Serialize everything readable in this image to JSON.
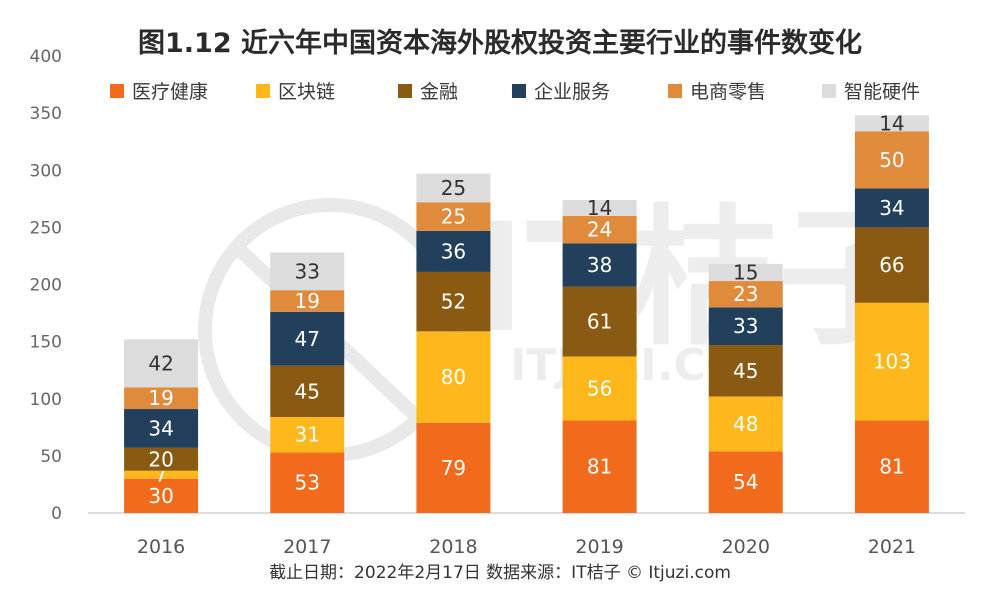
{
  "chart_data": {
    "type": "bar",
    "stacked": true,
    "title": "图1.12 近六年中国资本海外股权投资主要行业的事件数变化",
    "categories": [
      "2016",
      "2017",
      "2018",
      "2019",
      "2020",
      "2021"
    ],
    "series": [
      {
        "name": "医疗健康",
        "color": "#F26A1B",
        "values": [
          30,
          53,
          79,
          81,
          54,
          81
        ]
      },
      {
        "name": "区块链",
        "color": "#FFB81C",
        "values": [
          7,
          31,
          80,
          56,
          48,
          103
        ]
      },
      {
        "name": "金融",
        "color": "#8B5A12",
        "values": [
          20,
          45,
          52,
          61,
          45,
          66
        ]
      },
      {
        "name": "企业服务",
        "color": "#22405C",
        "values": [
          34,
          47,
          36,
          38,
          33,
          34
        ]
      },
      {
        "name": "电商零售",
        "color": "#E08A3C",
        "values": [
          19,
          19,
          25,
          24,
          23,
          50
        ]
      },
      {
        "name": "智能硬件",
        "color": "#DCDCDC",
        "values": [
          42,
          33,
          25,
          14,
          15,
          14
        ]
      }
    ],
    "yticks": [
      0,
      50,
      100,
      150,
      200,
      250,
      300,
      350,
      400
    ],
    "ylim": [
      0,
      400
    ],
    "xlabel": "",
    "ylabel": "",
    "legend_position": "top",
    "grid": false
  },
  "footer": "截止日期：2022年2月17日   数据来源：IT桔子 © Itjuzi.com",
  "watermark": {
    "main": "IT桔子",
    "sub": "ITJUZI.COM"
  }
}
